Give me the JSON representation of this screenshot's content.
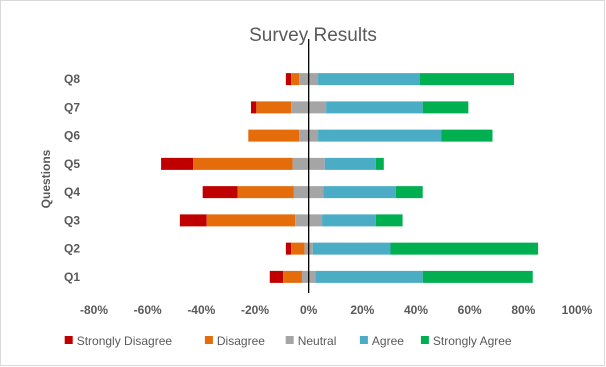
{
  "chart_data": {
    "type": "bar",
    "orientation": "horizontal",
    "stacked": "diverging",
    "title": "Survey Results",
    "ylabel": "Questions",
    "xlabel": "",
    "categories": [
      "Q1",
      "Q2",
      "Q3",
      "Q4",
      "Q5",
      "Q6",
      "Q7",
      "Q8"
    ],
    "xlim": [
      -80,
      100
    ],
    "xticks": [
      -80,
      -60,
      -40,
      -20,
      0,
      20,
      40,
      60,
      80,
      100
    ],
    "xtick_labels": [
      "-80%",
      "-60%",
      "-40%",
      "-20%",
      "0%",
      "20%",
      "40%",
      "60%",
      "80%",
      "100%"
    ],
    "grid": false,
    "legend_position": "bottom",
    "series": [
      {
        "name": "Strongly Disagree",
        "color": "#c00000",
        "values": [
          5,
          2,
          10,
          13,
          12,
          0,
          2,
          2
        ]
      },
      {
        "name": "Disagree",
        "color": "#e46c0a",
        "values": [
          7,
          5,
          33,
          21,
          37,
          19,
          13,
          3
        ]
      },
      {
        "name": "Neutral",
        "color": "#a5a5a5",
        "values": [
          5,
          3,
          10,
          11,
          12,
          7,
          13,
          7
        ]
      },
      {
        "name": "Agree",
        "color": "#4bacc6",
        "values": [
          40,
          29,
          20,
          27,
          19,
          46,
          36,
          38
        ]
      },
      {
        "name": "Strongly Agree",
        "color": "#00b050",
        "values": [
          41,
          55,
          10,
          10,
          3,
          19,
          17,
          35
        ]
      }
    ]
  }
}
